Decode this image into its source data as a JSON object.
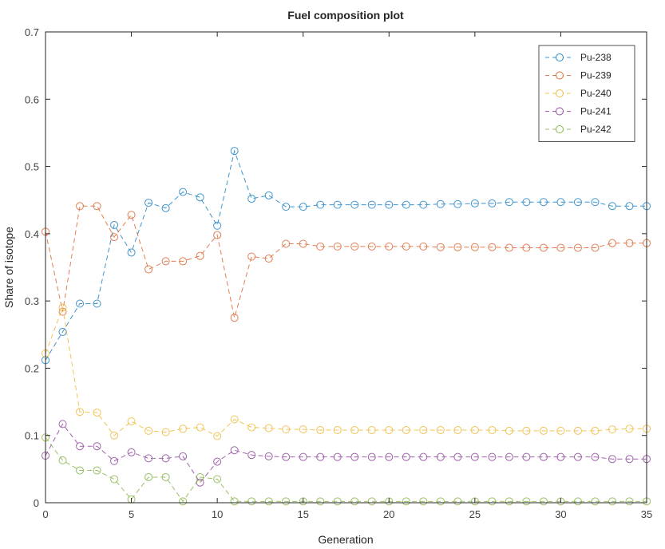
{
  "chart_data": {
    "type": "line",
    "title": "Fuel composition plot",
    "xlabel": "Generation",
    "ylabel": "Share of isotope",
    "xlim": [
      0,
      35
    ],
    "ylim": [
      0,
      0.7
    ],
    "x_ticks": [
      0,
      5,
      10,
      15,
      20,
      25,
      30,
      35
    ],
    "y_ticks": [
      0,
      0.1,
      0.2,
      0.3,
      0.4,
      0.5,
      0.6,
      0.7
    ],
    "y_tick_labels": [
      "0",
      "0.1",
      "0.2",
      "0.3",
      "0.4",
      "0.5",
      "0.6",
      "0.7"
    ],
    "grid": false,
    "legend_position": "upper right",
    "line_style": "dashed with circle markers",
    "x": [
      0,
      1,
      2,
      3,
      4,
      5,
      6,
      7,
      8,
      9,
      10,
      11,
      12,
      13,
      14,
      15,
      16,
      17,
      18,
      19,
      20,
      21,
      22,
      23,
      24,
      25,
      26,
      27,
      28,
      29,
      30,
      31,
      32,
      33,
      34,
      35
    ],
    "series": [
      {
        "name": "Pu-238",
        "color": "#0072BD",
        "values": [
          0.212,
          0.254,
          0.296,
          0.296,
          0.413,
          0.372,
          0.446,
          0.438,
          0.462,
          0.454,
          0.412,
          0.523,
          0.452,
          0.457,
          0.44,
          0.44,
          0.443,
          0.443,
          0.443,
          0.443,
          0.443,
          0.443,
          0.443,
          0.444,
          0.444,
          0.445,
          0.445,
          0.447,
          0.447,
          0.447,
          0.447,
          0.447,
          0.447,
          0.441,
          0.441,
          0.441
        ]
      },
      {
        "name": "Pu-239",
        "color": "#D95319",
        "values": [
          0.403,
          0.284,
          0.441,
          0.441,
          0.395,
          0.428,
          0.347,
          0.359,
          0.359,
          0.367,
          0.398,
          0.275,
          0.366,
          0.363,
          0.385,
          0.385,
          0.381,
          0.381,
          0.381,
          0.381,
          0.381,
          0.381,
          0.381,
          0.38,
          0.38,
          0.38,
          0.38,
          0.379,
          0.379,
          0.379,
          0.379,
          0.379,
          0.379,
          0.386,
          0.386,
          0.386
        ]
      },
      {
        "name": "Pu-240",
        "color": "#EDB120",
        "values": [
          0.222,
          0.29,
          0.135,
          0.134,
          0.1,
          0.121,
          0.107,
          0.105,
          0.11,
          0.112,
          0.099,
          0.124,
          0.112,
          0.111,
          0.109,
          0.109,
          0.108,
          0.108,
          0.108,
          0.108,
          0.108,
          0.108,
          0.108,
          0.108,
          0.108,
          0.108,
          0.108,
          0.107,
          0.107,
          0.107,
          0.107,
          0.107,
          0.107,
          0.109,
          0.11,
          0.11
        ]
      },
      {
        "name": "Pu-241",
        "color": "#7E2F8E",
        "values": [
          0.07,
          0.117,
          0.084,
          0.084,
          0.062,
          0.075,
          0.066,
          0.066,
          0.069,
          0.03,
          0.061,
          0.078,
          0.071,
          0.069,
          0.068,
          0.068,
          0.068,
          0.068,
          0.068,
          0.068,
          0.068,
          0.068,
          0.068,
          0.068,
          0.068,
          0.068,
          0.068,
          0.068,
          0.068,
          0.068,
          0.068,
          0.068,
          0.068,
          0.065,
          0.065,
          0.065
        ]
      },
      {
        "name": "Pu-242",
        "color": "#77AC30",
        "values": [
          0.097,
          0.063,
          0.048,
          0.048,
          0.035,
          0.005,
          0.038,
          0.038,
          0.002,
          0.038,
          0.035,
          0.002,
          0.002,
          0.002,
          0.002,
          0.002,
          0.002,
          0.002,
          0.002,
          0.002,
          0.002,
          0.002,
          0.002,
          0.002,
          0.002,
          0.002,
          0.002,
          0.002,
          0.002,
          0.002,
          0.002,
          0.002,
          0.002,
          0.002,
          0.002,
          0.002
        ]
      }
    ]
  }
}
